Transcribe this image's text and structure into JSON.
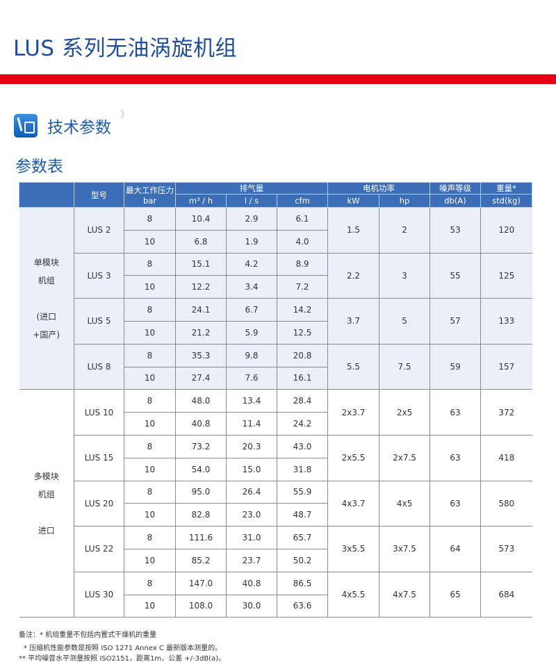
{
  "title": "LUS 系列无油涡旋机组",
  "section": {
    "icon": "document-pen-icon",
    "label": "技术参数"
  },
  "subtitle": "参数表",
  "colors": {
    "title": "#1e4e9c",
    "red_bar": "#e60012",
    "header": "#3c6db7",
    "group1_bg": "#eaeff8"
  },
  "table": {
    "headers": {
      "model": "型号",
      "pressure": "最大工作压力",
      "pressure_unit": "bar",
      "flow": "排气量",
      "flow_units": [
        "m³ / h",
        "l / s",
        "cfm"
      ],
      "motor": "电机功率",
      "motor_units": [
        "kW",
        "hp"
      ],
      "noise": "噪声等级",
      "noise_unit": "db(A)",
      "weight": "重量*",
      "weight_unit": "std(kg)"
    },
    "groups": [
      {
        "label_lines": [
          "单模块",
          "机组",
          "",
          "(进口",
          "+国产)"
        ],
        "models": [
          {
            "model": "LUS 2",
            "rows": [
              [
                "8",
                "10.4",
                "2.9",
                "6.1"
              ],
              [
                "10",
                "6.8",
                "1.9",
                "4.0"
              ]
            ],
            "kw": "1.5",
            "hp": "2",
            "db": "53",
            "kg": "120"
          },
          {
            "model": "LUS 3",
            "rows": [
              [
                "8",
                "15.1",
                "4.2",
                "8.9"
              ],
              [
                "10",
                "12.2",
                "3.4",
                "7.2"
              ]
            ],
            "kw": "2.2",
            "hp": "3",
            "db": "55",
            "kg": "125"
          },
          {
            "model": "LUS 5",
            "rows": [
              [
                "8",
                "24.1",
                "6.7",
                "14.2"
              ],
              [
                "10",
                "21.2",
                "5.9",
                "12.5"
              ]
            ],
            "kw": "3.7",
            "hp": "5",
            "db": "57",
            "kg": "133"
          },
          {
            "model": "LUS 8",
            "rows": [
              [
                "8",
                "35.3",
                "9.8",
                "20.8"
              ],
              [
                "10",
                "27.4",
                "7.6",
                "16.1"
              ]
            ],
            "kw": "5.5",
            "hp": "7.5",
            "db": "59",
            "kg": "157"
          }
        ]
      },
      {
        "label_lines": [
          "多模块",
          "机组",
          "",
          "进口"
        ],
        "models": [
          {
            "model": "LUS 10",
            "rows": [
              [
                "8",
                "48.0",
                "13.4",
                "28.4"
              ],
              [
                "10",
                "40.8",
                "11.4",
                "24.2"
              ]
            ],
            "kw": "2x3.7",
            "hp": "2x5",
            "db": "63",
            "kg": "372"
          },
          {
            "model": "LUS 15",
            "rows": [
              [
                "8",
                "73.2",
                "20.3",
                "43.0"
              ],
              [
                "10",
                "54.0",
                "15.0",
                "31.8"
              ]
            ],
            "kw": "2x5.5",
            "hp": "2x7.5",
            "db": "63",
            "kg": "418"
          },
          {
            "model": "LUS 20",
            "rows": [
              [
                "8",
                "95.0",
                "26.4",
                "55.9"
              ],
              [
                "10",
                "82.8",
                "23.0",
                "48.7"
              ]
            ],
            "kw": "4x3.7",
            "hp": "4x5",
            "db": "63",
            "kg": "580"
          },
          {
            "model": "LUS 22",
            "rows": [
              [
                "8",
                "111.6",
                "31.0",
                "65.7"
              ],
              [
                "10",
                "85.2",
                "23.7",
                "50.2"
              ]
            ],
            "kw": "3x5.5",
            "hp": "3x7.5",
            "db": "64",
            "kg": "573"
          },
          {
            "model": "LUS 30",
            "rows": [
              [
                "8",
                "147.0",
                "40.8",
                "86.5"
              ],
              [
                "10",
                "108.0",
                "30.0",
                "63.6"
              ]
            ],
            "kw": "4x5.5",
            "hp": "4x7.5",
            "db": "65",
            "kg": "684"
          }
        ]
      }
    ]
  },
  "notes": [
    "备注：* 机组重量不包括内置式干燥机的重量",
    "* 压缩机性能参数是按照 ISO 1271 Annex C 最新版本测量的。",
    "** 平均噪音水平测量按照 ISO2151，距离1m，公差 +/-3dB(a)。"
  ]
}
